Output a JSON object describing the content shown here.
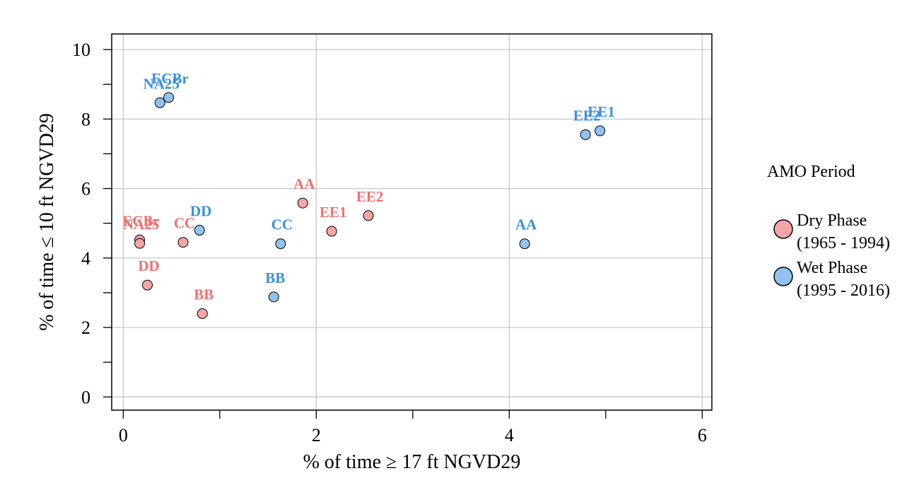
{
  "chart_data": {
    "type": "scatter",
    "xlabel": "% of time ≥ 17 ft NGVD29",
    "ylabel": "% of time ≤ 10 ft NGVD29",
    "xlim": [
      -0.12,
      6.1
    ],
    "ylim": [
      -0.38,
      10.45
    ],
    "xticks": [
      0,
      1,
      2,
      3,
      4,
      5,
      6
    ],
    "xtick_labels": [
      "0",
      "",
      "2",
      "",
      "4",
      "",
      "6"
    ],
    "yticks": [
      0,
      1,
      2,
      3,
      4,
      5,
      6,
      7,
      8,
      9,
      10
    ],
    "ytick_labels": [
      "0",
      "",
      "2",
      "",
      "4",
      "",
      "6",
      "",
      "8",
      "",
      "10"
    ],
    "grid": true,
    "legend": {
      "title": "AMO Period",
      "position": "right",
      "entries": [
        {
          "series": 0,
          "line1": "Dry Phase",
          "line2": "(1965 - 1994)"
        },
        {
          "series": 1,
          "line1": "Wet Phase",
          "line2": "(1995 - 2016)"
        }
      ]
    },
    "series": [
      {
        "name": "Dry Phase (1965 - 1994)",
        "fill": "#f4a6a6",
        "label_color": "#f07070",
        "points": [
          {
            "label": "ECBr",
            "x": 0.17,
            "y": 4.52
          },
          {
            "label": "NA25",
            "x": 0.17,
            "y": 4.42
          },
          {
            "label": "DD",
            "x": 0.25,
            "y": 3.22
          },
          {
            "label": "CC",
            "x": 0.62,
            "y": 4.45
          },
          {
            "label": "BB",
            "x": 0.82,
            "y": 2.4
          },
          {
            "label": "AA",
            "x": 1.86,
            "y": 5.58
          },
          {
            "label": "EE1",
            "x": 2.16,
            "y": 4.77
          },
          {
            "label": "EE2",
            "x": 2.54,
            "y": 5.22
          }
        ]
      },
      {
        "name": "Wet Phase (1995 - 2016)",
        "fill": "#92c2f0",
        "label_color": "#3a8fe0",
        "points": [
          {
            "label": "NA25",
            "x": 0.38,
            "y": 8.47
          },
          {
            "label": "ECBr",
            "x": 0.47,
            "y": 8.62
          },
          {
            "label": "DD",
            "x": 0.79,
            "y": 4.8
          },
          {
            "label": "BB",
            "x": 1.56,
            "y": 2.88
          },
          {
            "label": "CC",
            "x": 1.63,
            "y": 4.41
          },
          {
            "label": "AA",
            "x": 4.16,
            "y": 4.41
          },
          {
            "label": "EE2",
            "x": 4.79,
            "y": 7.55
          },
          {
            "label": "EE1",
            "x": 4.94,
            "y": 7.66
          }
        ]
      }
    ]
  }
}
